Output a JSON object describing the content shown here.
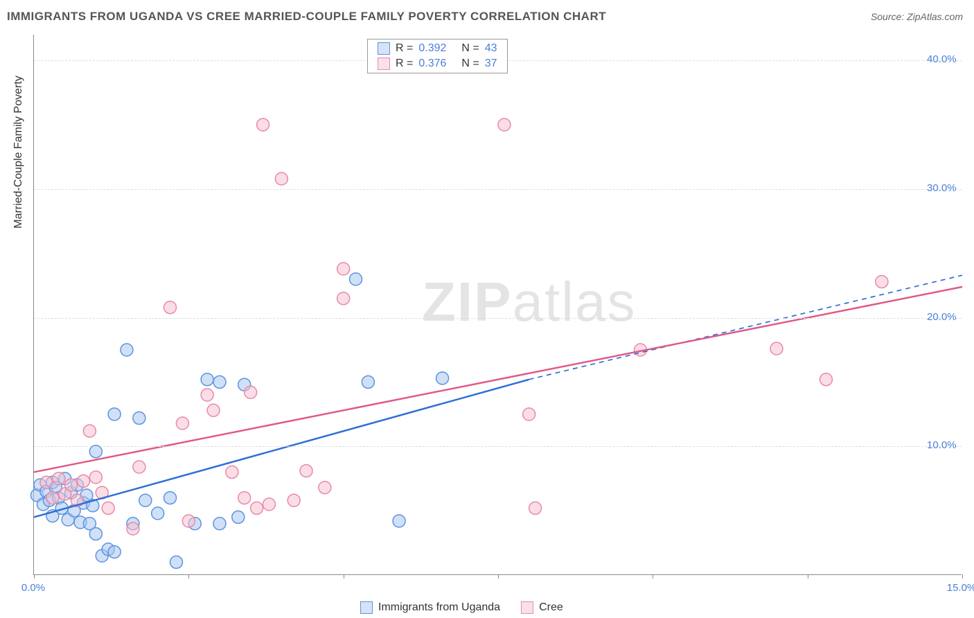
{
  "title": "IMMIGRANTS FROM UGANDA VS CREE MARRIED-COUPLE FAMILY POVERTY CORRELATION CHART",
  "source_label": "Source:",
  "source_name": "ZipAtlas.com",
  "y_axis_label": "Married-Couple Family Poverty",
  "watermark": {
    "zip": "ZIP",
    "atlas": "atlas"
  },
  "chart": {
    "type": "scatter",
    "xlim": [
      0,
      15
    ],
    "ylim": [
      0,
      42
    ],
    "x_ticks": [
      0,
      2.5,
      5,
      7.5,
      10,
      12.5,
      15
    ],
    "x_tick_labels": {
      "0": "0.0%",
      "15": "15.0%"
    },
    "y_ticks": [
      10,
      20,
      30,
      40
    ],
    "y_tick_labels": [
      "10.0%",
      "20.0%",
      "30.0%",
      "40.0%"
    ],
    "grid_color": "#dddddd",
    "axis_color": "#888888",
    "background_color": "#ffffff",
    "tick_label_color": "#4a7fd8",
    "label_fontsize": 16,
    "tick_fontsize": 15,
    "point_radius": 9,
    "point_stroke_width": 1.5,
    "point_fill_opacity": 0.25,
    "series": [
      {
        "name": "Immigrants from Uganda",
        "color_stroke": "#5b93e0",
        "color_fill": "#a9c7f0",
        "r_value": "0.392",
        "n_value": "43",
        "trend": {
          "x1": 0,
          "y1": 4.5,
          "x2": 8,
          "y2": 15.2,
          "x1_ext": 8,
          "y1_ext": 15.2,
          "x2_ext": 15,
          "y2_ext": 23.3,
          "color": "#2e6fd6",
          "width": 2.5
        },
        "points": [
          [
            0.05,
            6.2
          ],
          [
            0.1,
            7.0
          ],
          [
            0.15,
            5.5
          ],
          [
            0.2,
            6.5
          ],
          [
            0.25,
            5.8
          ],
          [
            0.3,
            7.2
          ],
          [
            0.3,
            4.6
          ],
          [
            0.35,
            6.8
          ],
          [
            0.4,
            6.0
          ],
          [
            0.45,
            5.2
          ],
          [
            0.5,
            7.5
          ],
          [
            0.55,
            4.3
          ],
          [
            0.6,
            6.4
          ],
          [
            0.65,
            5.0
          ],
          [
            0.7,
            7.0
          ],
          [
            0.75,
            4.1
          ],
          [
            0.8,
            5.6
          ],
          [
            0.85,
            6.2
          ],
          [
            0.9,
            4.0
          ],
          [
            0.95,
            5.4
          ],
          [
            1.0,
            3.2
          ],
          [
            1.0,
            9.6
          ],
          [
            1.1,
            1.5
          ],
          [
            1.2,
            2.0
          ],
          [
            1.3,
            1.8
          ],
          [
            1.3,
            12.5
          ],
          [
            1.5,
            17.5
          ],
          [
            1.6,
            4.0
          ],
          [
            1.7,
            12.2
          ],
          [
            1.8,
            5.8
          ],
          [
            2.0,
            4.8
          ],
          [
            2.2,
            6.0
          ],
          [
            2.3,
            1.0
          ],
          [
            2.6,
            4.0
          ],
          [
            2.8,
            15.2
          ],
          [
            3.0,
            4.0
          ],
          [
            3.0,
            15.0
          ],
          [
            3.3,
            4.5
          ],
          [
            3.4,
            14.8
          ],
          [
            5.2,
            23.0
          ],
          [
            5.4,
            15.0
          ],
          [
            5.9,
            4.2
          ],
          [
            6.6,
            15.3
          ]
        ]
      },
      {
        "name": "Cree",
        "color_stroke": "#e88aa5",
        "color_fill": "#f6c1d1",
        "r_value": "0.376",
        "n_value": "37",
        "trend": {
          "x1": 0,
          "y1": 8.0,
          "x2": 15,
          "y2": 22.4,
          "color": "#e05a86",
          "width": 2.5
        },
        "points": [
          [
            0.2,
            7.2
          ],
          [
            0.3,
            6.0
          ],
          [
            0.4,
            7.5
          ],
          [
            0.5,
            6.3
          ],
          [
            0.6,
            7.0
          ],
          [
            0.7,
            5.8
          ],
          [
            0.8,
            7.3
          ],
          [
            0.9,
            11.2
          ],
          [
            1.0,
            7.6
          ],
          [
            1.1,
            6.4
          ],
          [
            1.2,
            5.2
          ],
          [
            1.6,
            3.6
          ],
          [
            1.7,
            8.4
          ],
          [
            2.2,
            20.8
          ],
          [
            2.4,
            11.8
          ],
          [
            2.5,
            4.2
          ],
          [
            2.8,
            14.0
          ],
          [
            2.9,
            12.8
          ],
          [
            3.2,
            8.0
          ],
          [
            3.4,
            6.0
          ],
          [
            3.5,
            14.2
          ],
          [
            3.6,
            5.2
          ],
          [
            3.7,
            35.0
          ],
          [
            3.8,
            5.5
          ],
          [
            4.0,
            30.8
          ],
          [
            4.2,
            5.8
          ],
          [
            4.4,
            8.1
          ],
          [
            4.7,
            6.8
          ],
          [
            5.0,
            23.8
          ],
          [
            5.0,
            21.5
          ],
          [
            7.6,
            35.0
          ],
          [
            8.0,
            12.5
          ],
          [
            8.1,
            5.2
          ],
          [
            9.8,
            17.5
          ],
          [
            12.0,
            17.6
          ],
          [
            12.8,
            15.2
          ],
          [
            13.7,
            22.8
          ]
        ]
      }
    ]
  },
  "legend_bottom": [
    {
      "label": "Immigrants from Uganda",
      "stroke": "#5b93e0",
      "fill": "#a9c7f0"
    },
    {
      "label": "Cree",
      "stroke": "#e88aa5",
      "fill": "#f6c1d1"
    }
  ]
}
